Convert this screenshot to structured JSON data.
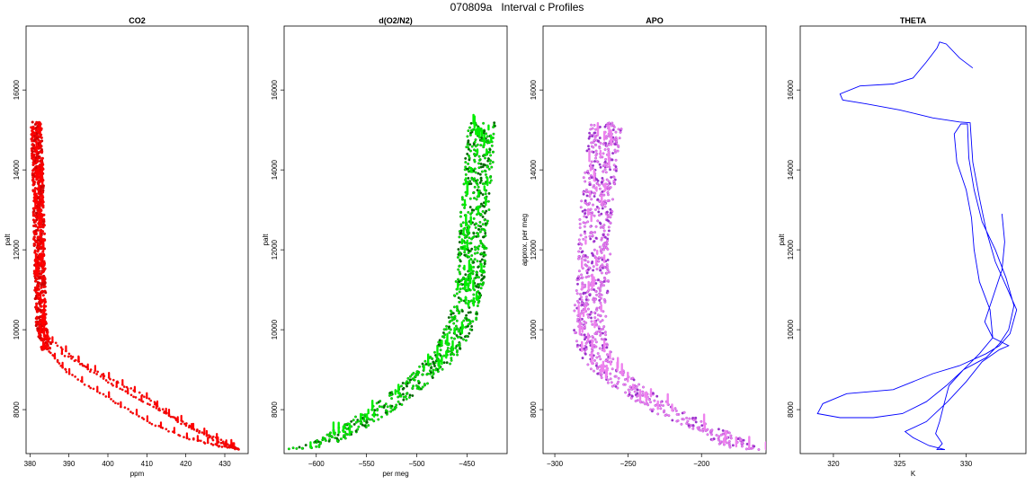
{
  "figure_title": "070809a   Interval c Profiles",
  "chart_data": [
    {
      "type": "scatter",
      "title": "CO2",
      "xlabel": "ppm",
      "ylabel": "palt",
      "xlim": [
        379,
        436
      ],
      "ylim": [
        6900,
        17600
      ],
      "xticks": [
        380,
        390,
        400,
        410,
        420,
        430
      ],
      "yticks": [
        8000,
        10000,
        12000,
        14000,
        16000
      ],
      "colors": [
        "#ff0000",
        "#cc0000"
      ],
      "series": [
        {
          "kind": "band",
          "points": [
            [
              381.6,
              15200
            ],
            [
              381.8,
              14600
            ],
            [
              382.0,
              14000
            ],
            [
              382.2,
              13400
            ],
            [
              382.3,
              12800
            ],
            [
              382.4,
              12200
            ],
            [
              382.5,
              11600
            ],
            [
              382.6,
              11000
            ],
            [
              382.8,
              10500
            ],
            [
              383.0,
              10100
            ],
            [
              383.6,
              9800
            ],
            [
              384.5,
              9500
            ]
          ],
          "spread": 1.4,
          "min_y": 9400
        },
        {
          "kind": "line",
          "points": [
            [
              384.5,
              9500
            ],
            [
              390,
              8900
            ],
            [
              400,
              8300
            ],
            [
              410,
              7700
            ],
            [
              420,
              7300
            ],
            [
              428,
              7100
            ],
            [
              434,
              7000
            ]
          ]
        },
        {
          "kind": "line",
          "points": [
            [
              386,
              9700
            ],
            [
              395,
              9000
            ],
            [
              405,
              8400
            ],
            [
              415,
              7900
            ],
            [
              425,
              7400
            ],
            [
              434,
              7000
            ]
          ]
        },
        {
          "kind": "line",
          "points": [
            [
              388,
              9400
            ],
            [
              400,
              8800
            ],
            [
              410,
              8300
            ],
            [
              418,
              7700
            ],
            [
              428,
              7200
            ],
            [
              434,
              7000
            ]
          ]
        }
      ]
    },
    {
      "type": "scatter",
      "title": "d(O2/N2)",
      "xlabel": "per meg",
      "ylabel": "palt",
      "xlim": [
        -632,
        -410
      ],
      "ylim": [
        6900,
        17600
      ],
      "xticks": [
        -600,
        -550,
        -500,
        -450
      ],
      "yticks": [
        8000,
        10000,
        12000,
        14000,
        16000
      ],
      "colors": [
        "#00ee00",
        "#006600"
      ],
      "series": [
        {
          "kind": "curve",
          "points": [
            [
              -625,
              7000
            ],
            [
              -600,
              7100
            ],
            [
              -575,
              7400
            ],
            [
              -555,
              7700
            ],
            [
              -535,
              8000
            ],
            [
              -515,
              8400
            ],
            [
              -495,
              8800
            ],
            [
              -478,
              9200
            ],
            [
              -464,
              9700
            ],
            [
              -454,
              10300
            ],
            [
              -448,
              11000
            ],
            [
              -445,
              11800
            ],
            [
              -443,
              12600
            ],
            [
              -441,
              13400
            ],
            [
              -438,
              14200
            ],
            [
              -435,
              15000
            ],
            [
              -433,
              15200
            ]
          ],
          "spread": 14
        }
      ]
    },
    {
      "type": "scatter",
      "title": "APO",
      "xlabel": "",
      "ylabel": "approx. per meg",
      "xlim": [
        -308,
        -156
      ],
      "ylim": [
        6900,
        17600
      ],
      "xticks": [
        -300,
        -250,
        -200
      ],
      "yticks": [
        8000,
        10000,
        12000,
        14000,
        16000
      ],
      "colors": [
        "#ee82ee",
        "#9932cc"
      ],
      "series": [
        {
          "kind": "curve",
          "points": [
            [
              -265,
              15200
            ],
            [
              -268,
              14400
            ],
            [
              -270,
              13600
            ],
            [
              -272,
              12800
            ],
            [
              -273,
              12000
            ],
            [
              -274,
              11200
            ],
            [
              -276,
              10400
            ],
            [
              -276,
              9700
            ],
            [
              -270,
              9200
            ],
            [
              -258,
              8800
            ],
            [
              -243,
              8400
            ],
            [
              -225,
              8000
            ],
            [
              -208,
              7700
            ],
            [
              -190,
              7400
            ],
            [
              -175,
              7100
            ],
            [
              -163,
              7000
            ]
          ],
          "spread": 11
        }
      ]
    },
    {
      "type": "line",
      "title": "THETA",
      "xlabel": "K",
      "ylabel": "palt",
      "xlim": [
        317.5,
        334.5
      ],
      "ylim": [
        6900,
        17600
      ],
      "xticks": [
        320,
        325,
        330
      ],
      "yticks": [
        8000,
        10000,
        12000,
        14000,
        16000
      ],
      "colors": [
        "#0000ff"
      ],
      "series": [
        {
          "points": [
            [
              330.5,
              16550
            ],
            [
              329.5,
              16800
            ],
            [
              328.5,
              17150
            ],
            [
              328,
              17200
            ],
            [
              327.8,
              17050
            ],
            [
              327,
              16700
            ],
            [
              326,
              16300
            ],
            [
              324.5,
              16150
            ],
            [
              322,
              16100
            ],
            [
              320.5,
              15900
            ],
            [
              320.7,
              15750
            ],
            [
              322.5,
              15650
            ],
            [
              325,
              15500
            ],
            [
              327.5,
              15300
            ],
            [
              329.5,
              15200
            ],
            [
              330.3,
              15180
            ],
            [
              330.5,
              14200
            ],
            [
              331,
              13300
            ],
            [
              331.5,
              12500
            ],
            [
              332.2,
              11700
            ],
            [
              333,
              11100
            ],
            [
              333.8,
              10500
            ],
            [
              333.3,
              9900
            ],
            [
              332.5,
              9600
            ],
            [
              331.5,
              9400
            ],
            [
              329.5,
              9100
            ],
            [
              327.5,
              8900
            ],
            [
              326,
              8700
            ],
            [
              324.5,
              8500
            ],
            [
              321,
              8400
            ],
            [
              319.2,
              8150
            ],
            [
              318.8,
              7900
            ],
            [
              320.5,
              7800
            ],
            [
              323,
              7800
            ],
            [
              325.2,
              7900
            ],
            [
              327,
              8200
            ],
            [
              328.5,
              8600
            ],
            [
              329.8,
              9000
            ],
            [
              331,
              9400
            ],
            [
              332,
              9800
            ],
            [
              331.8,
              10500
            ],
            [
              331,
              11200
            ],
            [
              330.6,
              12000
            ],
            [
              330.4,
              12800
            ],
            [
              330,
              13500
            ],
            [
              329.3,
              14200
            ],
            [
              329.1,
              14900
            ],
            [
              329.6,
              15150
            ],
            [
              330.1,
              15150
            ],
            [
              330.2,
              14300
            ],
            [
              330.6,
              13500
            ],
            [
              331.2,
              12700
            ],
            [
              332.2,
              12000
            ],
            [
              333,
              11300
            ],
            [
              333.6,
              10600
            ],
            [
              333.2,
              10000
            ],
            [
              332.5,
              9650
            ],
            [
              331.5,
              9300
            ],
            [
              329.8,
              9000
            ],
            [
              328.7,
              8600
            ],
            [
              328.3,
              8100
            ],
            [
              328,
              7700
            ],
            [
              327.7,
              7400
            ],
            [
              328.2,
              7150
            ],
            [
              327.8,
              7000
            ],
            [
              328.4,
              7000
            ],
            [
              327.2,
              7100
            ],
            [
              326,
              7300
            ],
            [
              325.4,
              7450
            ],
            [
              327,
              7700
            ],
            [
              328.6,
              8200
            ],
            [
              330,
              8700
            ],
            [
              331.2,
              9200
            ],
            [
              332.5,
              9500
            ],
            [
              333.2,
              9600
            ],
            [
              332,
              9800
            ],
            [
              331.4,
              10200
            ],
            [
              332,
              10800
            ],
            [
              332.7,
              11500
            ],
            [
              332.9,
              12200
            ],
            [
              332.7,
              12900
            ]
          ]
        }
      ]
    }
  ]
}
